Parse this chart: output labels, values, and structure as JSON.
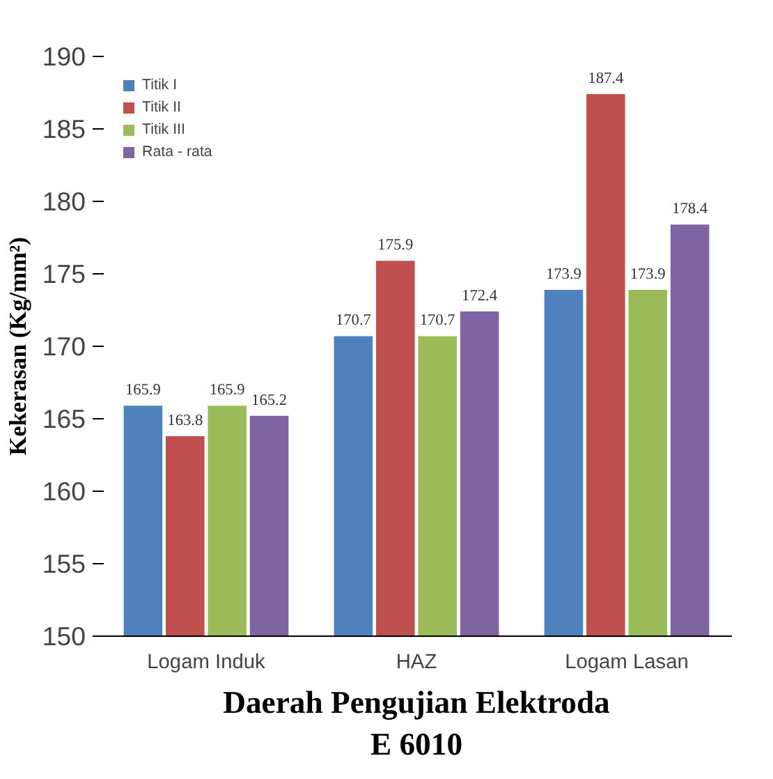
{
  "chart_data": {
    "type": "bar",
    "xlabel": "Daerah Pengujian Elektroda E 6010",
    "ylabel": "Kekerasan (Kg/mm²)",
    "categories": [
      "Logam Induk",
      "HAZ",
      "Logam Lasan"
    ],
    "series": [
      {
        "name": "Titik I",
        "color": "#4f81bd",
        "values": [
          165.9,
          170.7,
          173.9
        ]
      },
      {
        "name": "Titik II",
        "color": "#c0504d",
        "values": [
          163.8,
          175.9,
          187.4
        ]
      },
      {
        "name": "Titik III",
        "color": "#9bbb59",
        "values": [
          165.9,
          170.7,
          173.9
        ]
      },
      {
        "name": "Rata - rata",
        "color": "#8064a2",
        "values": [
          165.2,
          172.4,
          178.4
        ]
      }
    ],
    "ylim": [
      150,
      190
    ],
    "yticks": [
      150,
      155,
      160,
      165,
      170,
      175,
      180,
      185,
      190
    ],
    "data_labels": true,
    "grid": false,
    "legend": "top left"
  }
}
